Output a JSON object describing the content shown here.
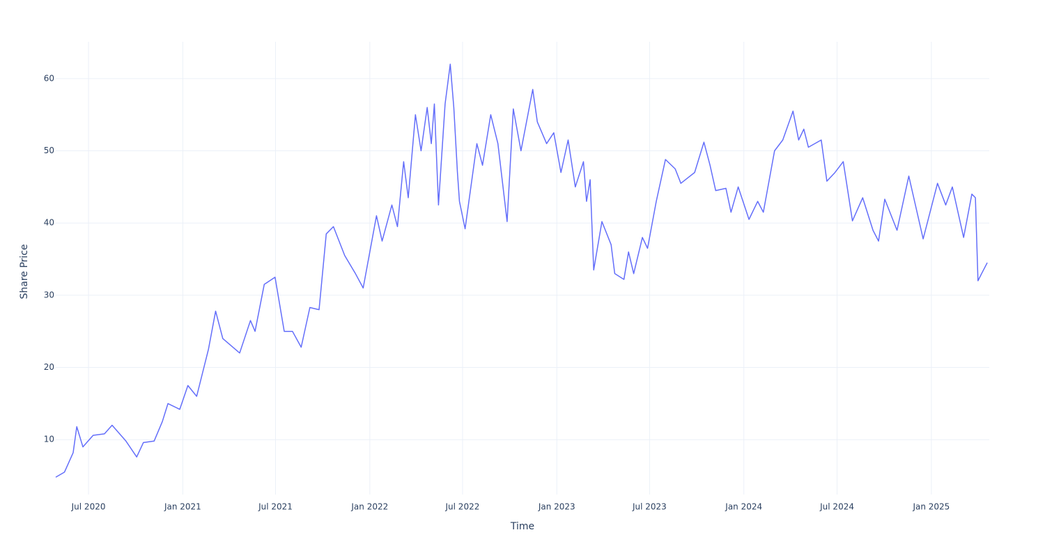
{
  "chart_data": {
    "type": "line",
    "x_label": "Time",
    "y_label": "Share Price",
    "color": "#636efa",
    "grid": true,
    "xlim": [
      "2020-04-28",
      "2025-04-24"
    ],
    "ylim": [
      2.4,
      65.1
    ],
    "xticks": [
      {
        "value": "2020-07-01",
        "label": "Jul 2020"
      },
      {
        "value": "2021-01-01",
        "label": "Jan 2021"
      },
      {
        "value": "2021-07-01",
        "label": "Jul 2021"
      },
      {
        "value": "2022-01-01",
        "label": "Jan 2022"
      },
      {
        "value": "2022-07-01",
        "label": "Jul 2022"
      },
      {
        "value": "2023-01-01",
        "label": "Jan 2023"
      },
      {
        "value": "2023-07-01",
        "label": "Jul 2023"
      },
      {
        "value": "2024-01-01",
        "label": "Jan 2024"
      },
      {
        "value": "2024-07-01",
        "label": "Jul 2024"
      },
      {
        "value": "2025-01-01",
        "label": "Jan 2025"
      }
    ],
    "yticks": [
      10,
      20,
      30,
      40,
      50,
      60
    ],
    "x": [
      "2020-04-28",
      "2020-05-15",
      "2020-06-01",
      "2020-06-08",
      "2020-06-20",
      "2020-07-10",
      "2020-08-01",
      "2020-08-16",
      "2020-09-12",
      "2020-10-03",
      "2020-10-16",
      "2020-11-06",
      "2020-11-22",
      "2020-12-03",
      "2020-12-26",
      "2021-01-11",
      "2021-01-28",
      "2021-02-20",
      "2021-03-06",
      "2021-03-20",
      "2021-04-22",
      "2021-05-13",
      "2021-05-22",
      "2021-06-09",
      "2021-06-30",
      "2021-07-18",
      "2021-08-03",
      "2021-08-20",
      "2021-09-06",
      "2021-09-24",
      "2021-10-08",
      "2021-10-22",
      "2021-11-13",
      "2021-12-04",
      "2021-12-19",
      "2022-01-14",
      "2022-01-25",
      "2022-02-13",
      "2022-02-24",
      "2022-03-08",
      "2022-03-17",
      "2022-03-31",
      "2022-04-11",
      "2022-04-23",
      "2022-05-01",
      "2022-05-07",
      "2022-05-15",
      "2022-05-28",
      "2022-06-07",
      "2022-06-14",
      "2022-06-21",
      "2022-06-25",
      "2022-07-06",
      "2022-07-29",
      "2022-08-09",
      "2022-08-25",
      "2022-09-08",
      "2022-09-26",
      "2022-10-08",
      "2022-10-23",
      "2022-11-15",
      "2022-11-24",
      "2022-12-12",
      "2022-12-26",
      "2023-01-09",
      "2023-01-23",
      "2023-02-06",
      "2023-02-22",
      "2023-02-28",
      "2023-03-07",
      "2023-03-14",
      "2023-03-30",
      "2023-04-17",
      "2023-04-24",
      "2023-05-12",
      "2023-05-21",
      "2023-05-31",
      "2023-06-17",
      "2023-06-27",
      "2023-07-14",
      "2023-08-01",
      "2023-08-20",
      "2023-08-31",
      "2023-09-27",
      "2023-10-15",
      "2023-10-27",
      "2023-11-07",
      "2023-11-27",
      "2023-12-07",
      "2023-12-21",
      "2024-01-11",
      "2024-01-28",
      "2024-02-08",
      "2024-03-01",
      "2024-03-17",
      "2024-04-06",
      "2024-04-17",
      "2024-04-27",
      "2024-05-06",
      "2024-05-31",
      "2024-06-11",
      "2024-06-27",
      "2024-07-13",
      "2024-07-31",
      "2024-08-20",
      "2024-09-09",
      "2024-09-20",
      "2024-10-02",
      "2024-10-26",
      "2024-11-18",
      "2024-12-16",
      "2025-01-13",
      "2025-01-29",
      "2025-02-11",
      "2025-03-05",
      "2025-03-21",
      "2025-03-28",
      "2025-04-02",
      "2025-04-09",
      "2025-04-20"
    ],
    "values": [
      4.8,
      5.5,
      8.2,
      11.8,
      9.0,
      10.6,
      10.8,
      12.0,
      9.8,
      7.6,
      9.6,
      9.8,
      12.5,
      15.0,
      14.2,
      17.5,
      16.0,
      22.5,
      27.8,
      24.0,
      22.0,
      26.5,
      25.0,
      31.5,
      32.5,
      25.0,
      25.0,
      22.8,
      28.3,
      28.0,
      38.5,
      39.5,
      35.5,
      33.0,
      31.0,
      41.0,
      37.5,
      42.5,
      39.5,
      48.5,
      43.5,
      55.0,
      50.0,
      56.0,
      51.0,
      56.5,
      42.5,
      56.5,
      62.0,
      56.0,
      47.0,
      43.0,
      39.2,
      51.0,
      48.0,
      55.0,
      51.0,
      40.2,
      55.8,
      50.0,
      58.5,
      54.0,
      51.0,
      52.5,
      47.0,
      51.5,
      45.0,
      48.5,
      43.0,
      46.0,
      33.5,
      40.2,
      37.0,
      33.0,
      32.2,
      36.0,
      33.0,
      38.0,
      36.5,
      43.0,
      48.8,
      47.5,
      45.5,
      47.0,
      51.2,
      48.0,
      44.5,
      44.8,
      41.5,
      45.0,
      40.5,
      43.0,
      41.5,
      50.0,
      51.5,
      55.5,
      51.5,
      53.0,
      50.5,
      51.5,
      45.8,
      47.0,
      48.5,
      40.3,
      43.5,
      39.0,
      37.5,
      43.3,
      39.0,
      46.5,
      37.8,
      45.5,
      42.5,
      45.0,
      38.0,
      44.0,
      43.5,
      32.0,
      33.0,
      34.5
    ]
  }
}
